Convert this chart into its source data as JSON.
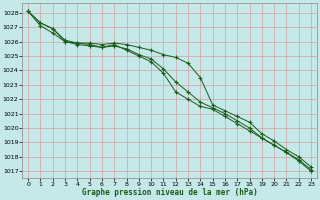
{
  "title": "Graphe pression niveau de la mer (hPa)",
  "bg_color": "#c5e8e8",
  "grid_color": "#d4a0a0",
  "line_color": "#1a5c1a",
  "xlim": [
    -0.5,
    23.5
  ],
  "ylim": [
    1016.5,
    1028.7
  ],
  "yticks": [
    1017,
    1018,
    1019,
    1020,
    1021,
    1022,
    1023,
    1024,
    1025,
    1026,
    1027,
    1028
  ],
  "xticks": [
    0,
    1,
    2,
    3,
    4,
    5,
    6,
    7,
    8,
    9,
    10,
    11,
    12,
    13,
    14,
    15,
    16,
    17,
    18,
    19,
    20,
    21,
    22,
    23
  ],
  "series1": {
    "x": [
      0,
      1,
      2,
      3,
      4,
      5,
      6,
      7,
      8,
      9,
      10,
      11,
      12,
      13,
      14,
      15,
      16,
      17,
      18,
      19,
      20,
      21,
      22,
      23
    ],
    "y": [
      1028.1,
      1027.3,
      1026.9,
      1026.1,
      1025.9,
      1025.9,
      1025.8,
      1025.9,
      1025.8,
      1025.6,
      1025.4,
      1025.1,
      1024.9,
      1024.5,
      1023.5,
      1021.6,
      1021.2,
      1020.8,
      1020.4,
      1019.6,
      1019.1,
      1018.5,
      1018.0,
      1017.3
    ]
  },
  "series2": {
    "x": [
      0,
      1,
      2,
      3,
      4,
      5,
      6,
      7,
      8,
      9,
      10,
      11,
      12,
      13,
      14,
      15,
      16,
      17,
      18,
      19,
      20,
      21,
      22,
      23
    ],
    "y": [
      1028.1,
      1027.1,
      1026.6,
      1026.0,
      1025.9,
      1025.8,
      1025.6,
      1025.7,
      1025.5,
      1025.1,
      1024.8,
      1024.1,
      1023.2,
      1022.5,
      1021.8,
      1021.4,
      1021.0,
      1020.5,
      1020.0,
      1019.3,
      1018.8,
      1018.3,
      1017.7,
      1017.0
    ]
  },
  "series3": {
    "x": [
      0,
      1,
      2,
      3,
      4,
      5,
      6,
      7,
      8,
      9,
      10,
      11,
      12,
      13,
      14,
      15,
      16,
      17,
      18,
      19,
      20,
      21,
      22,
      23
    ],
    "y": [
      1028.1,
      1027.3,
      1026.9,
      1026.0,
      1025.8,
      1025.7,
      1025.6,
      1025.8,
      1025.4,
      1025.0,
      1024.6,
      1023.8,
      1022.5,
      1022.0,
      1021.5,
      1021.3,
      1020.8,
      1020.3,
      1019.8,
      1019.3,
      1018.8,
      1018.3,
      1017.8,
      1017.1
    ]
  }
}
